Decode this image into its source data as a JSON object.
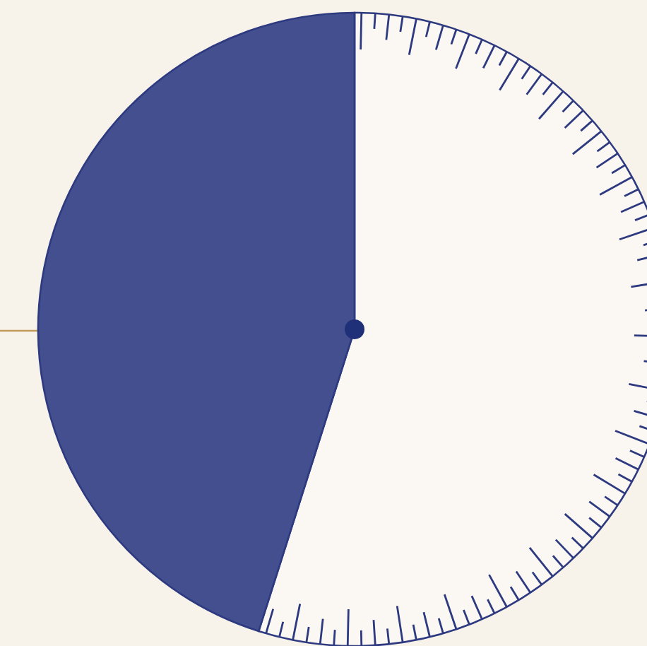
{
  "chart_data": {
    "type": "pie",
    "categories": [
      null,
      null
    ],
    "values": [
      54.9,
      45.1
    ],
    "colors": [
      "#fbf8f3",
      "#434f8e"
    ],
    "legend": false
  }
}
